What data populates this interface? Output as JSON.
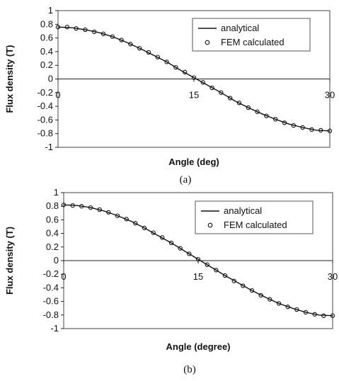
{
  "chart_data": [
    {
      "type": "line",
      "panel_label": "(a)",
      "xlabel": "Angle (deg)",
      "ylabel": "Flux density (T)",
      "xlim": [
        0,
        30
      ],
      "ylim": [
        -1,
        1
      ],
      "x_ticks": [
        "0",
        "15",
        "30"
      ],
      "y_ticks": [
        "1",
        "0.8",
        "0.6",
        "0.4",
        "0.2",
        "0",
        "-0.2",
        "-0.4",
        "-0.6",
        "-0.8",
        "-1"
      ],
      "legend_placement": "top-right",
      "grid": false,
      "series": [
        {
          "name": "analytical",
          "style": "line",
          "x": [
            0,
            1.5,
            3,
            4.5,
            6,
            7.5,
            9,
            10.5,
            12,
            13.5,
            15,
            16.5,
            18,
            19.5,
            21,
            22.5,
            24,
            25.5,
            27,
            28.5,
            30
          ],
          "y": [
            0.76,
            0.75,
            0.72,
            0.68,
            0.62,
            0.54,
            0.45,
            0.35,
            0.25,
            0.13,
            0.02,
            -0.09,
            -0.2,
            -0.32,
            -0.42,
            -0.51,
            -0.59,
            -0.66,
            -0.71,
            -0.75,
            -0.76
          ]
        },
        {
          "name": "FEM calculated",
          "style": "markers",
          "x": [
            0,
            1,
            2,
            3,
            4,
            5,
            6,
            7,
            8,
            9,
            10,
            11,
            12,
            13,
            14,
            15,
            16,
            17,
            18,
            19,
            20,
            21,
            22,
            23,
            24,
            25,
            26,
            27,
            28,
            29,
            30
          ],
          "y": [
            0.76,
            0.76,
            0.74,
            0.72,
            0.69,
            0.66,
            0.62,
            0.57,
            0.51,
            0.45,
            0.39,
            0.32,
            0.25,
            0.17,
            0.1,
            0.02,
            -0.05,
            -0.13,
            -0.2,
            -0.28,
            -0.35,
            -0.42,
            -0.48,
            -0.54,
            -0.59,
            -0.64,
            -0.68,
            -0.71,
            -0.74,
            -0.75,
            -0.76
          ]
        }
      ]
    },
    {
      "type": "line",
      "panel_label": "(b)",
      "xlabel": "Angle (degree)",
      "ylabel": "Flux density (T)",
      "xlim": [
        0,
        30
      ],
      "ylim": [
        -1,
        1
      ],
      "x_ticks": [
        "0",
        "15",
        "30"
      ],
      "y_ticks": [
        "1",
        "0.8",
        "0.6",
        "0.4",
        "0.2",
        "0",
        "-0.2",
        "-0.4",
        "-0.6",
        "-0.8",
        "-1"
      ],
      "legend_placement": "top-right",
      "grid": false,
      "series": [
        {
          "name": "analytical",
          "style": "line",
          "x": [
            0,
            1.5,
            3,
            4.5,
            6,
            7.5,
            9,
            10.5,
            12,
            13.5,
            15,
            16.5,
            18,
            19.5,
            21,
            22.5,
            24,
            25.5,
            27,
            28.5,
            30
          ],
          "y": [
            0.82,
            0.81,
            0.78,
            0.73,
            0.66,
            0.58,
            0.48,
            0.37,
            0.26,
            0.14,
            0.02,
            -0.1,
            -0.22,
            -0.33,
            -0.44,
            -0.54,
            -0.63,
            -0.7,
            -0.76,
            -0.8,
            -0.81
          ]
        },
        {
          "name": "FEM calculated",
          "style": "markers",
          "x": [
            0,
            1,
            2,
            3,
            4,
            5,
            6,
            7,
            8,
            9,
            10,
            11,
            12,
            13,
            14,
            15,
            16,
            17,
            18,
            19,
            20,
            21,
            22,
            23,
            24,
            25,
            26,
            27,
            28,
            29,
            30
          ],
          "y": [
            0.82,
            0.81,
            0.8,
            0.78,
            0.75,
            0.71,
            0.66,
            0.61,
            0.55,
            0.48,
            0.41,
            0.34,
            0.26,
            0.18,
            0.1,
            0.02,
            -0.06,
            -0.14,
            -0.22,
            -0.3,
            -0.37,
            -0.44,
            -0.51,
            -0.57,
            -0.63,
            -0.68,
            -0.72,
            -0.76,
            -0.79,
            -0.81,
            -0.81
          ]
        }
      ]
    }
  ]
}
